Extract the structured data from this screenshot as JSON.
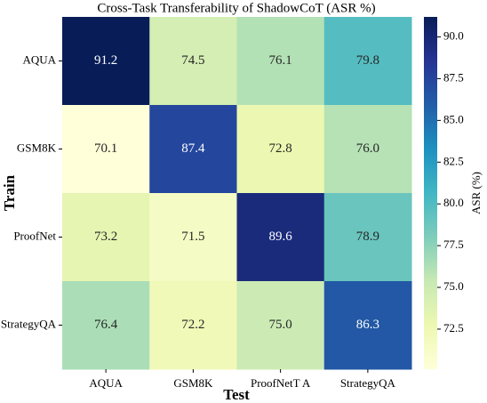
{
  "chart_data": {
    "type": "heatmap",
    "title": "Cross-Task Transferability of ShadowCoT (ASR %)",
    "x_label": "Test",
    "y_label": "Train",
    "colorbar_label": "ASR (%)",
    "x_categories": [
      "AQUA",
      "GSM8K",
      "ProofNetT A",
      "StrategyQA"
    ],
    "y_categories": [
      "AQUA",
      "GSM8K",
      "ProofNet",
      "StrategyQA"
    ],
    "values": [
      [
        91.2,
        74.5,
        76.1,
        79.8
      ],
      [
        70.1,
        87.4,
        72.8,
        76.0
      ],
      [
        73.2,
        71.5,
        89.6,
        78.9
      ],
      [
        76.4,
        72.2,
        75.0,
        86.3
      ]
    ],
    "value_labels": [
      [
        "91.2",
        "74.5",
        "76.1",
        "79.8"
      ],
      [
        "70.1",
        "87.4",
        "72.8",
        "76.0"
      ],
      [
        "73.2",
        "71.5",
        "89.6",
        "78.9"
      ],
      [
        "76.4",
        "72.2",
        "75.0",
        "86.3"
      ]
    ],
    "colormap": [
      "#ffffd9",
      "#edf8b1",
      "#c7e9b4",
      "#7fcdbb",
      "#41b6c4",
      "#1d91c0",
      "#225ea8",
      "#253494",
      "#081d58"
    ],
    "zlim": [
      70.1,
      91.2
    ],
    "zticks": [
      {
        "value": 72.5,
        "label": "72.5"
      },
      {
        "value": 75,
        "label": "75.0"
      },
      {
        "value": 77.5,
        "label": "77.5"
      },
      {
        "value": 80,
        "label": "80.0"
      },
      {
        "value": 82.5,
        "label": "82.5"
      },
      {
        "value": 85,
        "label": "85.0"
      },
      {
        "value": 87.5,
        "label": "87.5"
      },
      {
        "value": 90,
        "label": "90.0"
      }
    ]
  }
}
